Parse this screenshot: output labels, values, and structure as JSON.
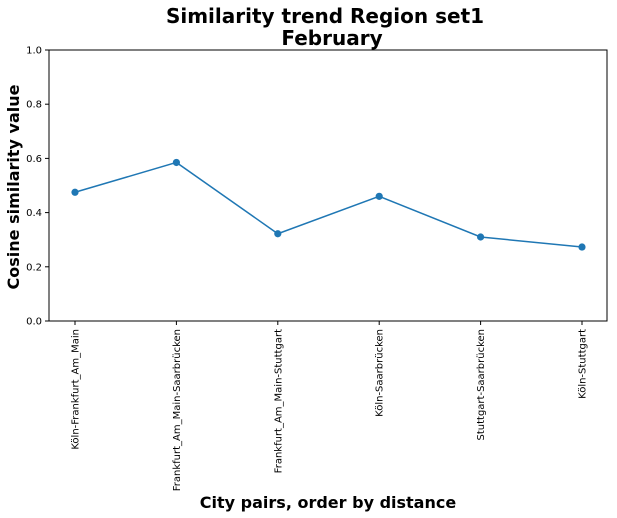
{
  "chart_data": {
    "type": "line",
    "title": "Similarity trend Region set1",
    "subtitle": "February",
    "xlabel": "City pairs, order by distance",
    "ylabel": "Cosine similarity value",
    "categories": [
      "Köln-Frankfurt_Am_Main",
      "Frankfurt_Am_Main-Saarbrücken",
      "Frankfurt_Am_Main-Stuttgart",
      "Köln-Saarbrücken",
      "Stuttgart-Saarbrücken",
      "Köln-Stuttgart"
    ],
    "series": [
      {
        "values": [
          0.475,
          0.585,
          0.322,
          0.46,
          0.31,
          0.273
        ],
        "color": "#1f77b4",
        "marker": "circle"
      }
    ],
    "ylim": [
      0.0,
      1.0
    ],
    "yticks": [
      "0.0",
      "0.2",
      "0.4",
      "0.6",
      "0.8",
      "1.0"
    ],
    "grid": false,
    "legend": "none"
  }
}
